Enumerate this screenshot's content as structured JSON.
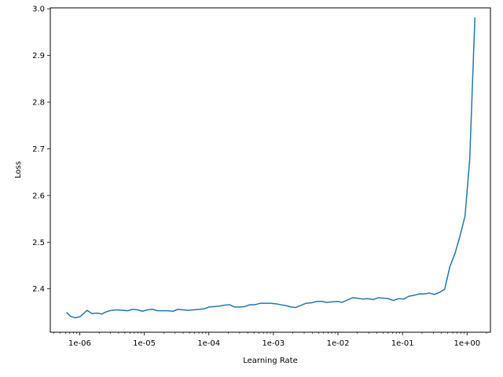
{
  "chart_data": {
    "type": "line",
    "title": "",
    "xlabel": "Learning Rate",
    "ylabel": "Loss",
    "xscale": "log",
    "xlim": [
      3.5e-07,
      2.3
    ],
    "ylim": [
      2.307,
      3.002
    ],
    "grid": false,
    "x_ticks": [
      {
        "value": 1e-06,
        "label": "1e-06"
      },
      {
        "value": 1e-05,
        "label": "1e-05"
      },
      {
        "value": 0.0001,
        "label": "1e-04"
      },
      {
        "value": 0.001,
        "label": "1e-03"
      },
      {
        "value": 0.01,
        "label": "1e-02"
      },
      {
        "value": 0.1,
        "label": "1e-01"
      },
      {
        "value": 1,
        "label": "1e+00"
      }
    ],
    "y_ticks": [
      {
        "value": 2.4,
        "label": "2.4"
      },
      {
        "value": 2.5,
        "label": "2.5"
      },
      {
        "value": 2.6,
        "label": "2.6"
      },
      {
        "value": 2.7,
        "label": "2.7"
      },
      {
        "value": 2.8,
        "label": "2.8"
      },
      {
        "value": 2.9,
        "label": "2.9"
      },
      {
        "value": 3.0,
        "label": "3.0"
      }
    ],
    "series": [
      {
        "color": "#1f77b4",
        "x": [
          6.3e-07,
          7.2e-07,
          8.5e-07,
          1e-06,
          1.15e-06,
          1.3e-06,
          1.55e-06,
          1.85e-06,
          2.2e-06,
          2.6e-06,
          3.1e-06,
          3.8e-06,
          4.6e-06,
          5.5e-06,
          6.6e-06,
          7.9e-06,
          9.4e-06,
          1.12e-05,
          1.35e-05,
          1.6e-05,
          1.9e-05,
          2.3e-05,
          2.8e-05,
          3.3e-05,
          4e-05,
          4.8e-05,
          5.8e-05,
          7e-05,
          8.4e-05,
          0.0001,
          0.00012,
          0.000145,
          0.000175,
          0.00021,
          0.00025,
          0.0003,
          0.00036,
          0.00043,
          0.00052,
          0.00062,
          0.00075,
          0.0009,
          0.00108,
          0.0013,
          0.00156,
          0.00187,
          0.0022,
          0.0027,
          0.0032,
          0.0039,
          0.0047,
          0.0056,
          0.0067,
          0.0081,
          0.0097,
          0.0116,
          0.014,
          0.0168,
          0.02,
          0.024,
          0.029,
          0.035,
          0.042,
          0.05,
          0.06,
          0.072,
          0.087,
          0.104,
          0.125,
          0.15,
          0.18,
          0.216,
          0.26,
          0.31,
          0.37,
          0.45,
          0.54,
          0.65,
          0.78,
          0.93,
          1.1,
          1.32
        ],
        "y": [
          2.349,
          2.341,
          2.338,
          2.34,
          2.347,
          2.354,
          2.347,
          2.348,
          2.346,
          2.351,
          2.354,
          2.355,
          2.354,
          2.353,
          2.356,
          2.355,
          2.352,
          2.355,
          2.356,
          2.353,
          2.353,
          2.353,
          2.352,
          2.356,
          2.355,
          2.354,
          2.355,
          2.356,
          2.357,
          2.361,
          2.362,
          2.363,
          2.365,
          2.366,
          2.361,
          2.361,
          2.362,
          2.366,
          2.366,
          2.369,
          2.369,
          2.369,
          2.368,
          2.366,
          2.364,
          2.361,
          2.36,
          2.365,
          2.369,
          2.37,
          2.373,
          2.373,
          2.371,
          2.372,
          2.373,
          2.371,
          2.376,
          2.381,
          2.38,
          2.378,
          2.379,
          2.377,
          2.381,
          2.38,
          2.379,
          2.375,
          2.379,
          2.378,
          2.384,
          2.386,
          2.389,
          2.389,
          2.391,
          2.388,
          2.392,
          2.399,
          2.447,
          2.476,
          2.514,
          2.556,
          2.678,
          2.98
        ]
      }
    ]
  }
}
